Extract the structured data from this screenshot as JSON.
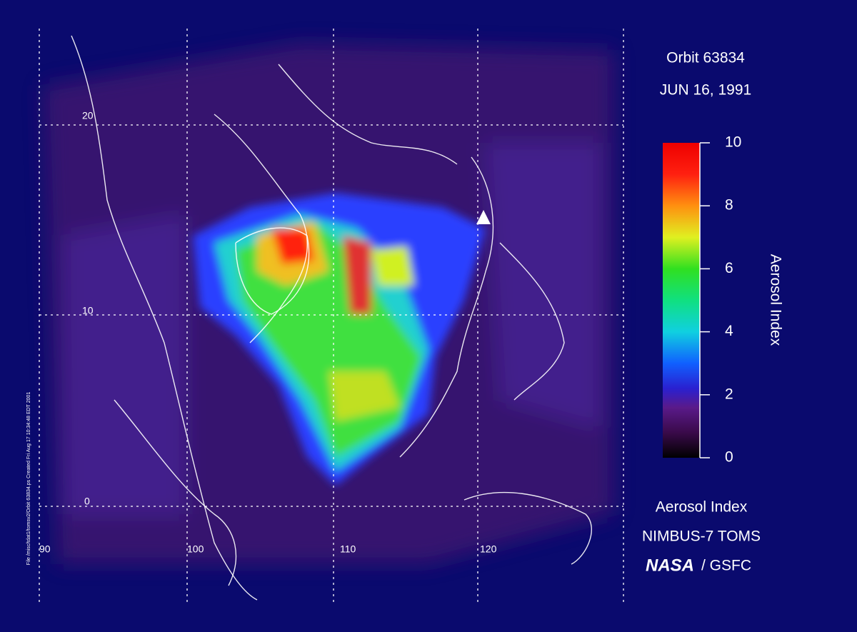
{
  "header": {
    "orbit": "Orbit 63834",
    "date": "JUN 16, 1991"
  },
  "colorbar": {
    "label": "Aerosol Index",
    "range": [
      0,
      10
    ],
    "ticks": [
      0,
      2,
      4,
      6,
      8,
      10
    ]
  },
  "grid": {
    "lat_labels": [
      "20",
      "10",
      "0"
    ],
    "lon_labels": [
      "90",
      "100",
      "110",
      "120"
    ]
  },
  "footer": {
    "product": "Aerosol Index",
    "instrument": "NIMBUS-7 TOMS",
    "agency": "NASA",
    "center": "/ GSFC"
  },
  "file_note": "File /misc/tdat1/tomsv2/Orbit 63834.ps Created Fri Aug 17 10:34:48 EDT 2001"
}
